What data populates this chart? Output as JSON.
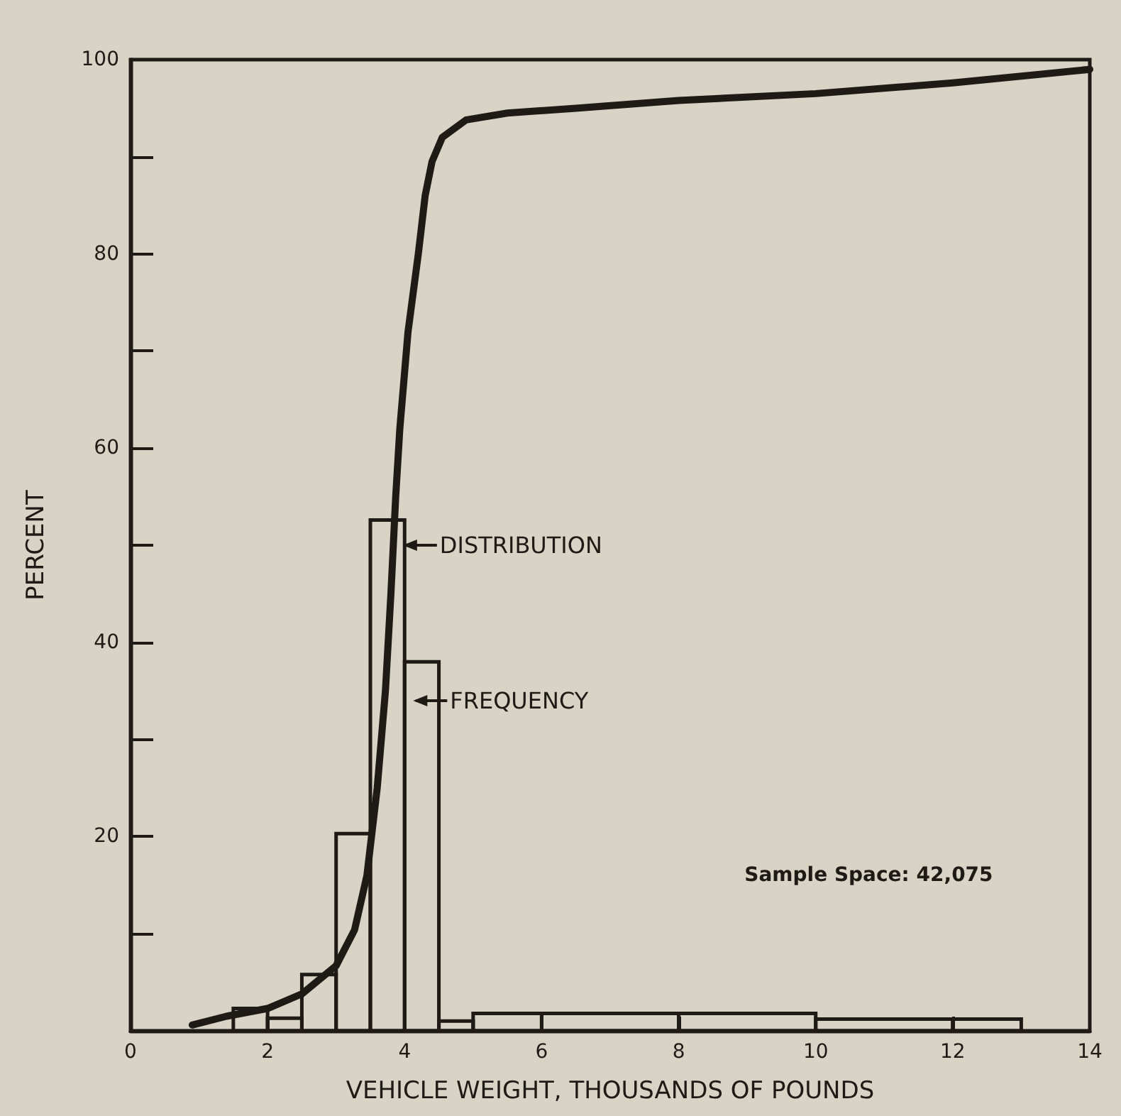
{
  "chart_data": {
    "type": "histogram",
    "xlabel": "VEHICLE WEIGHT, THOUSANDS OF POUNDS",
    "ylabel": "PERCENT",
    "xlim": [
      0,
      14
    ],
    "xticks": [
      0,
      2,
      4,
      6,
      8,
      10,
      12,
      14
    ],
    "ylim": [
      0,
      100
    ],
    "yticks": [
      {
        "value": 10,
        "label": null
      },
      20,
      {
        "value": 30,
        "label": null
      },
      40,
      {
        "value": 50,
        "label": null
      },
      60,
      {
        "value": 70,
        "label": null
      },
      80,
      {
        "value": 90,
        "label": null
      },
      100
    ],
    "grid": false,
    "series": [
      {
        "color": "#1e1a16",
        "bins": [
          1.5,
          2,
          2.5,
          3,
          3.5,
          4,
          4.5,
          5,
          6,
          8,
          10,
          12,
          13
        ],
        "values": [
          2.3,
          1.3,
          5.8,
          20.3,
          52.6,
          38,
          1.0,
          1.8,
          1.8,
          1.8,
          1.2,
          1.2
        ]
      },
      {
        "type": "line",
        "color": "#1e1a16",
        "marker": "none",
        "line_style": "solid",
        "x": [
          0.9,
          1.4,
          2.0,
          2.5,
          3.0,
          3.27,
          3.45,
          3.6,
          3.72,
          3.8,
          3.87,
          3.93,
          4.05,
          4.2,
          4.3,
          4.4,
          4.55,
          4.9,
          5.5,
          6.5,
          8,
          10,
          12,
          14
        ],
        "values": [
          0.6,
          1.5,
          2.3,
          3.8,
          6.7,
          10.4,
          16,
          25,
          35,
          45,
          55,
          62,
          72,
          80,
          86,
          89.5,
          92,
          93.8,
          94.5,
          95,
          95.8,
          96.5,
          97.6,
          99
        ]
      }
    ],
    "annotations": [
      {
        "text": "DISTRIBUTION",
        "x": 3.85,
        "y": 50
      },
      {
        "text": "FREQUENCY",
        "x": 4.0,
        "y": 34
      },
      "Sample Space: 42,075"
    ]
  }
}
